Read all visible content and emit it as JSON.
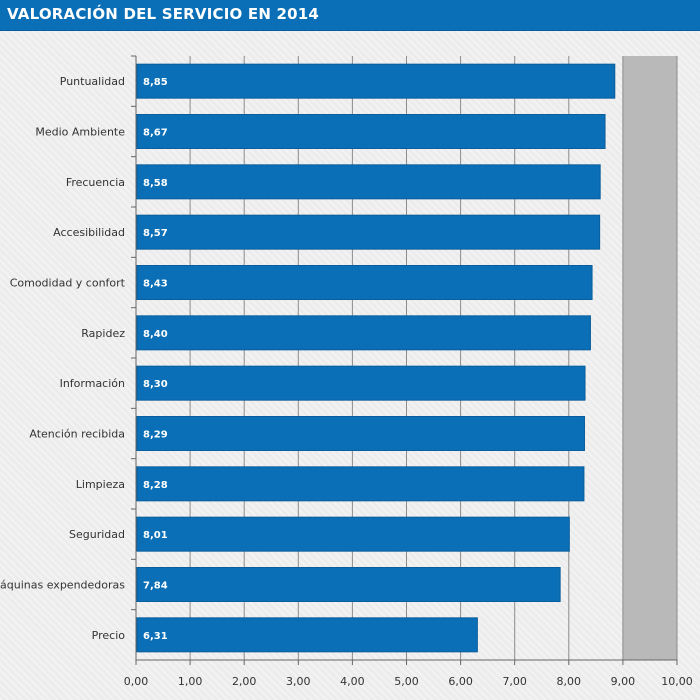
{
  "chart_data": {
    "type": "bar",
    "orientation": "horizontal",
    "title": "VALORACIÓN DEL SERVICIO EN 2014",
    "categories": [
      "Puntualidad",
      "Medio Ambiente",
      "Frecuencia",
      "Accesibilidad",
      "Comodidad y confort",
      "Rapidez",
      "Información",
      "Atención recibida",
      "Limpieza",
      "Seguridad",
      "Máquinas expendedoras",
      "Precio"
    ],
    "values": [
      8.85,
      8.67,
      8.58,
      8.57,
      8.43,
      8.4,
      8.3,
      8.29,
      8.28,
      8.01,
      7.84,
      6.31
    ],
    "value_labels": [
      "8,85",
      "8,67",
      "8,58",
      "8,57",
      "8,43",
      "8,40",
      "8,30",
      "8,29",
      "8,28",
      "8,01",
      "7,84",
      "6,31"
    ],
    "xlim": [
      0,
      10
    ],
    "xticks": [
      0,
      1,
      2,
      3,
      4,
      5,
      6,
      7,
      8,
      9,
      10
    ],
    "xtick_labels": [
      "0,00",
      "1,00",
      "2,00",
      "3,00",
      "4,00",
      "5,00",
      "6,00",
      "7,00",
      "8,00",
      "9,00",
      "10,00"
    ],
    "highlight_band": [
      9,
      10
    ],
    "grid": true,
    "xlabel": "",
    "ylabel": ""
  },
  "colors": {
    "bar": "#0a6fb6",
    "bar_edge": "#0a5e9c",
    "band": "#b9b9b9",
    "gridline": "#8c8c8c",
    "axis": "#666666"
  }
}
